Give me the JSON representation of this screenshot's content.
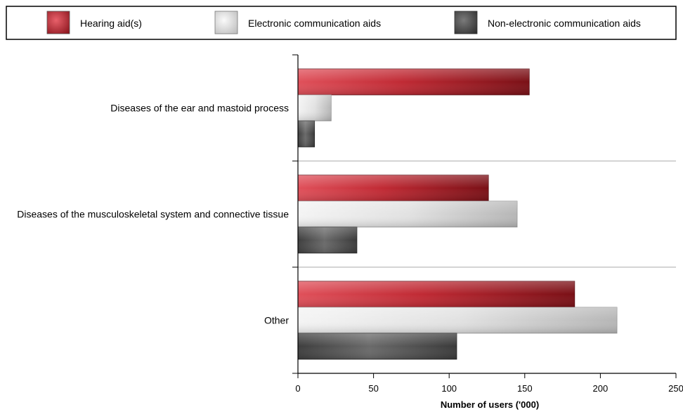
{
  "chart_data": {
    "type": "bar",
    "orientation": "horizontal",
    "categories": [
      "Diseases of the ear and mastoid process",
      "Diseases of the musculoskeletal system and connective tissue",
      "Other"
    ],
    "series": [
      {
        "name": "Hearing aid(s)",
        "values": [
          153,
          126,
          183
        ],
        "color": "#b3202b"
      },
      {
        "name": "Electronic communication aids",
        "values": [
          22,
          145,
          211
        ],
        "color": "#d0d0d0"
      },
      {
        "name": "Non-electronic communication aids",
        "values": [
          11,
          39,
          105
        ],
        "color": "#555555"
      }
    ],
    "xlabel": "Number of users ('000)",
    "ylabel": "",
    "xlim": [
      0,
      250
    ],
    "x_ticks": [
      "0",
      "50",
      "100",
      "150",
      "200",
      "250"
    ],
    "legend_position": "top",
    "grid": "horizontal separators between categories"
  }
}
